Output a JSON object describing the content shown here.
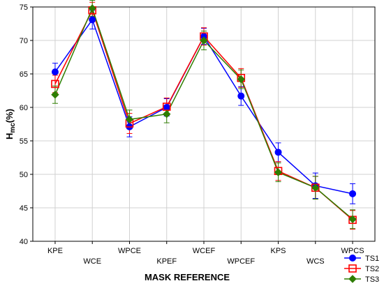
{
  "chart_data": {
    "type": "line",
    "xlabel": "MASK REFERENCE",
    "ylabel_main": "H",
    "ylabel_sub": "mc",
    "ylabel_unit": "(%)",
    "ylim": [
      40,
      75
    ],
    "yticks": [
      40,
      45,
      50,
      55,
      60,
      65,
      70,
      75
    ],
    "grid": true,
    "legend_position": "bottom-right",
    "categories": [
      "KPE",
      "WCE",
      "WPCE",
      "KPEF",
      "WCEF",
      "WPCEF",
      "KPS",
      "WCS",
      "WPCS"
    ],
    "series": [
      {
        "name": "TS1",
        "color": "#0000ff",
        "marker": "circle",
        "values": [
          65.3,
          73.1,
          57.1,
          60.0,
          70.6,
          61.7,
          53.3,
          48.3,
          47.1
        ],
        "err": [
          1.3,
          1.4,
          1.5,
          1.3,
          1.2,
          1.4,
          1.4,
          1.9,
          1.5
        ]
      },
      {
        "name": "TS2",
        "color": "#ff0000",
        "marker": "square",
        "values": [
          63.5,
          74.5,
          57.6,
          60.1,
          70.6,
          64.4,
          50.5,
          48.0,
          43.2
        ],
        "err": [
          1.3,
          1.2,
          1.5,
          1.3,
          1.3,
          1.4,
          1.4,
          1.7,
          1.4
        ]
      },
      {
        "name": "TS3",
        "color": "#2e7d00",
        "marker": "diamond",
        "values": [
          61.9,
          74.8,
          58.2,
          59.0,
          70.0,
          64.2,
          50.3,
          48.0,
          43.3
        ],
        "err": [
          1.3,
          1.2,
          1.4,
          1.3,
          1.4,
          1.4,
          1.4,
          1.7,
          1.4
        ]
      }
    ]
  }
}
